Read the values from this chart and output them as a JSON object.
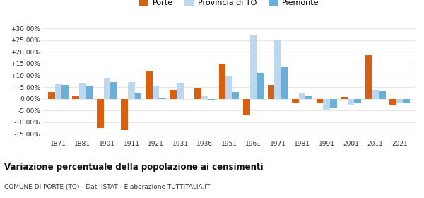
{
  "years": [
    1871,
    1881,
    1901,
    1911,
    1921,
    1931,
    1936,
    1951,
    1961,
    1971,
    1981,
    1991,
    2001,
    2011,
    2021
  ],
  "porte": [
    3.0,
    1.0,
    -12.5,
    -13.5,
    12.0,
    3.8,
    4.3,
    15.0,
    -7.0,
    6.0,
    -1.5,
    -2.0,
    0.7,
    18.5,
    -2.5
  ],
  "provincia": [
    6.3,
    6.5,
    8.7,
    7.2,
    5.5,
    6.8,
    1.0,
    9.5,
    27.0,
    25.0,
    2.7,
    -4.5,
    -2.5,
    3.8,
    -1.5
  ],
  "piemonte": [
    6.0,
    5.5,
    7.0,
    2.7,
    0.3,
    0.0,
    -0.5,
    3.0,
    11.0,
    13.5,
    1.2,
    -4.0,
    -2.0,
    3.5,
    -2.0
  ],
  "porte_color": "#d95f0e",
  "provincia_color": "#bdd7ee",
  "piemonte_color": "#6baed6",
  "title": "Variazione percentuale della popolazione ai censimenti",
  "subtitle": "COMUNE DI PORTE (TO) - Dati ISTAT - Elaborazione TUTTITALIA.IT",
  "legend_labels": [
    "Porte",
    "Provincia di TO",
    "Piemonte"
  ],
  "yticks": [
    -15,
    -10,
    -5,
    0,
    5,
    10,
    15,
    20,
    25,
    30
  ],
  "ylim": [
    -17,
    32
  ],
  "bar_width": 0.28,
  "background_color": "#ffffff",
  "grid_color": "#e8e8e8"
}
